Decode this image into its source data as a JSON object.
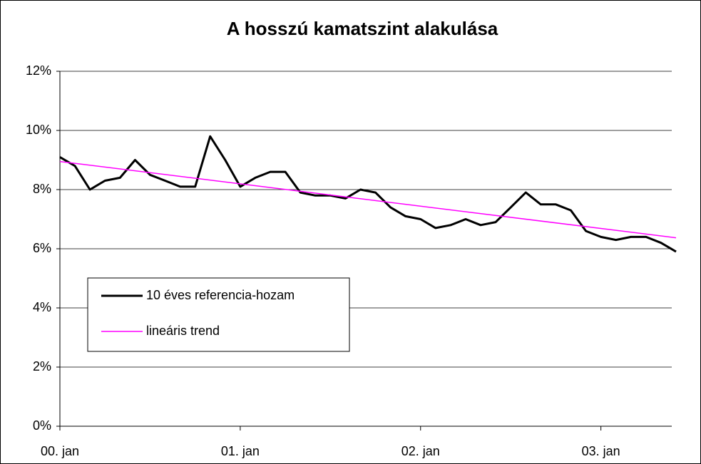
{
  "chart_data": {
    "type": "line",
    "title": "A hosszú kamatszint alakulása",
    "series": [
      {
        "name": "10 éves referencia-hozam",
        "color": "#000000",
        "x": [
          "2000-01",
          "2000-02",
          "2000-03",
          "2000-04",
          "2000-05",
          "2000-06",
          "2000-07",
          "2000-08",
          "2000-09",
          "2000-10",
          "2000-11",
          "2000-12",
          "2001-01",
          "2001-02",
          "2001-03",
          "2001-04",
          "2001-05",
          "2001-06",
          "2001-07",
          "2001-08",
          "2001-09",
          "2001-10",
          "2001-11",
          "2001-12",
          "2002-01",
          "2002-02",
          "2002-03",
          "2002-04",
          "2002-05",
          "2002-06",
          "2002-07",
          "2002-08",
          "2002-09",
          "2002-10",
          "2002-11",
          "2002-12",
          "2003-01",
          "2003-02",
          "2003-03",
          "2003-04",
          "2003-05",
          "2003-06"
        ],
        "values": [
          9.1,
          8.8,
          8.0,
          8.3,
          8.4,
          9.0,
          8.5,
          8.3,
          8.1,
          8.1,
          9.8,
          9.0,
          8.1,
          8.4,
          8.6,
          8.6,
          7.9,
          7.8,
          7.8,
          7.7,
          8.0,
          7.9,
          7.4,
          7.1,
          7.0,
          6.7,
          6.8,
          7.0,
          6.8,
          6.9,
          7.4,
          7.9,
          7.5,
          7.5,
          7.3,
          6.6,
          6.4,
          6.3,
          6.4,
          6.4,
          6.2,
          5.9
        ]
      },
      {
        "name": "lineáris trend",
        "color": "#ff00ff",
        "x": [
          "2000-01",
          "2003-06"
        ],
        "values": [
          8.95,
          6.37
        ]
      }
    ],
    "xlim": [
      "2000-01",
      "2003-06"
    ],
    "xticks": [
      {
        "value": "2000-01",
        "label": "00. jan"
      },
      {
        "value": "2001-01",
        "label": "01. jan"
      },
      {
        "value": "2002-01",
        "label": "02. jan"
      },
      {
        "value": "2003-01",
        "label": "03. jan"
      }
    ],
    "ylim": [
      0,
      12
    ],
    "yticks": [
      {
        "value": 0,
        "label": "0%"
      },
      {
        "value": 2,
        "label": "2%"
      },
      {
        "value": 4,
        "label": "4%"
      },
      {
        "value": 6,
        "label": "6%"
      },
      {
        "value": 8,
        "label": "8%"
      },
      {
        "value": 10,
        "label": "10%"
      },
      {
        "value": 12,
        "label": "12%"
      }
    ],
    "grid": true
  }
}
